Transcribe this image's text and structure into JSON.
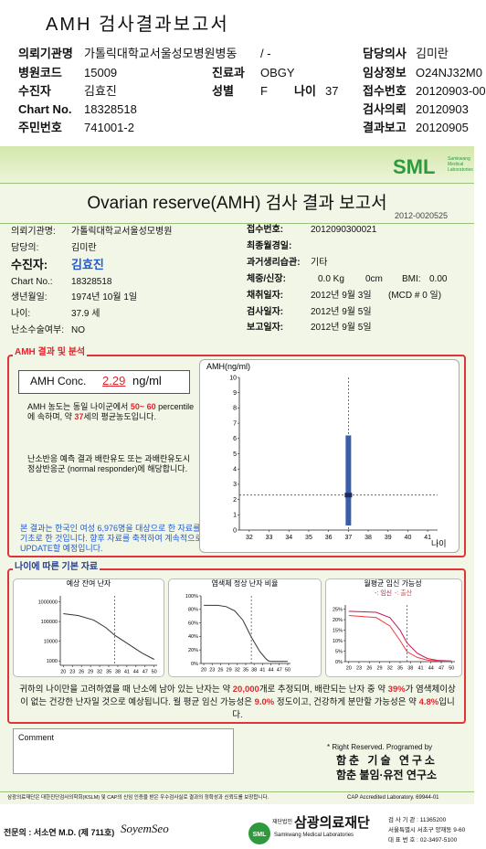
{
  "header": {
    "title": "AMH 검사결과보고서",
    "ward": "/ -",
    "fields": [
      {
        "label": "의뢰기관명",
        "value": "가톨릭대학교서울성모병원병동"
      },
      {
        "label": "병원코드",
        "value": "15009"
      },
      {
        "label": "수진자",
        "value": "김효진"
      },
      {
        "label": "Chart No.",
        "value": "18328518"
      },
      {
        "label": "주민번호",
        "value": "741001-2"
      },
      {
        "label": "진료과",
        "value": "OBGY"
      },
      {
        "label": "성별",
        "value": "F"
      },
      {
        "label": "나이",
        "value": "37"
      },
      {
        "label": "담당의사",
        "value": "김미란"
      },
      {
        "label": "임상정보",
        "value": "O24NJ32M0"
      },
      {
        "label": "접수번호",
        "value": "20120903-00"
      },
      {
        "label": "검사의뢰",
        "value": "20120903"
      },
      {
        "label": "결과보고",
        "value": "20120905"
      }
    ]
  },
  "report": {
    "logo": "SML",
    "logo_sub": "Samkwang Medical Laboratories",
    "title": "Ovarian reserve(AMH) 검사 결과 보고서",
    "report_no": "2012-0020525",
    "left_fields": [
      {
        "label": "의뢰기관명:",
        "value": "가톨릭대학교서울성모병원"
      },
      {
        "label": "담당의:",
        "value": "김미란"
      },
      {
        "label": "수진자:",
        "value": "김효진"
      },
      {
        "label": "Chart No.:",
        "value": "18328518"
      },
      {
        "label": "생년월일:",
        "value": "1974년 10월 1일"
      },
      {
        "label": "나이:",
        "value": "37.9 세"
      },
      {
        "label": "난소수술여부:",
        "value": "NO"
      }
    ],
    "right_fields": [
      {
        "label": "접수번호:",
        "values": [
          "2012090300021"
        ]
      },
      {
        "label": "최종월경일:",
        "values": []
      },
      {
        "label": "과거생리습관:",
        "values": [
          "기타"
        ]
      },
      {
        "label": "체중/신장:",
        "values": [
          "0.0 Kg",
          "0cm",
          "BMI:",
          "0.00"
        ]
      },
      {
        "label": "채취일자:",
        "values": [
          "2012년 9월 3일",
          "(MCD # 0 일)"
        ]
      },
      {
        "label": "검사일자:",
        "values": [
          "2012년 9월 5일"
        ]
      },
      {
        "label": "보고일자:",
        "values": [
          "2012년 9월 5일"
        ]
      }
    ]
  },
  "amh": {
    "section_title": "AMH 결과 및 분석",
    "conc_label": "AMH Conc.",
    "conc_value": "2.29",
    "conc_unit": "ng/ml",
    "percentile_text": [
      {
        "text": "AMH 농도는 동일 나이군에서 "
      },
      {
        "text": "50~ 60",
        "highlight": true
      },
      {
        "text": " percentile에 속하며, 약 "
      },
      {
        "text": "37",
        "highlight": true
      },
      {
        "text": "세의 평균농도입니다."
      }
    ],
    "response_text": "난소반응 예측 결과 배란유도 또는 과배란유도시 정상반응군 (normal responder)에 해당합니다.",
    "note_text": "본 결과는 한국인 여성 6,976명을 대상으로 한 자료를 기초로 한 것입니다. 향후 자료를 축적하여 계속적으로 UPDATE할 예정입니다.",
    "chart": {
      "type": "range",
      "ylabel": "AMH(ng/ml)",
      "xlabel": "나이",
      "xlim": [
        31.5,
        41.5
      ],
      "ylim": [
        0,
        10
      ],
      "xticks": [
        32,
        33,
        34,
        35,
        36,
        37,
        38,
        39,
        40,
        41
      ],
      "yticks": [
        0,
        1,
        2,
        3,
        4,
        5,
        6,
        7,
        8,
        9,
        10
      ],
      "range": {
        "x": 37,
        "low": 0.3,
        "high": 6.2,
        "color": "#3b5ea8"
      },
      "point": {
        "x": 37,
        "y": 2.29,
        "color": "#1a2a5a"
      }
    }
  },
  "basic": {
    "section_title": "나이에 따른 기본 자료",
    "charts": [
      {
        "type": "line",
        "title": "예상 잔여 난자",
        "log": true,
        "xlim": [
          19,
          51
        ],
        "ylim": [
          600,
          2000000
        ],
        "xticks": [
          20,
          23,
          26,
          29,
          32,
          35,
          38,
          41,
          44,
          47,
          50
        ],
        "yticks": [
          1000,
          10000,
          100000,
          1000000
        ],
        "age_line": 37,
        "series": [
          {
            "color": "#333333",
            "x": [
              20,
              25,
              30,
              34,
              37,
              40,
              43,
              46,
              50
            ],
            "values": [
              250000,
              200000,
              120000,
              50000,
              20000,
              10000,
              5000,
              2500,
              1200
            ]
          }
        ]
      },
      {
        "type": "line",
        "title": "염색체 정상 난자 비율",
        "log": false,
        "xlim": [
          19,
          51
        ],
        "ylim": [
          0,
          100
        ],
        "xticks": [
          20,
          23,
          26,
          29,
          32,
          35,
          38,
          41,
          44,
          47,
          50
        ],
        "yticks": [
          {
            "value": 0,
            "label": "0%"
          },
          {
            "value": 20,
            "label": "20%"
          },
          {
            "value": 40,
            "label": "40%"
          },
          {
            "value": 60,
            "label": "60%"
          },
          {
            "value": 80,
            "label": "80%"
          },
          {
            "value": 100,
            "label": "100%"
          }
        ],
        "age_line": 37,
        "series": [
          {
            "color": "#333333",
            "x": [
              20,
              25,
              28,
              31,
              34,
              37,
              40,
              42,
              43,
              44,
              46,
              50
            ],
            "values": [
              86,
              86,
              84,
              78,
              64,
              39,
              18,
              8,
              4,
              3,
              3,
              3
            ]
          }
        ]
      },
      {
        "type": "line",
        "title": "월평균 임신 가능성",
        "log": false,
        "xlim": [
          19,
          51
        ],
        "ylim": [
          0,
          27
        ],
        "xticks": [
          20,
          23,
          26,
          29,
          32,
          35,
          38,
          41,
          44,
          47,
          50
        ],
        "yticks": [
          {
            "value": 0,
            "label": "0%"
          },
          {
            "value": 5,
            "label": "5%"
          },
          {
            "value": 10,
            "label": "10%"
          },
          {
            "value": 15,
            "label": "15%"
          },
          {
            "value": 20,
            "label": "20%"
          },
          {
            "value": 25,
            "label": "25%"
          }
        ],
        "age_line": 37,
        "series": [
          {
            "name": "-: 임신",
            "color": "#c2185b",
            "x": [
              20,
              28,
              32,
              35,
              37,
              40,
              43,
              46,
              50
            ],
            "values": [
              24,
              23.5,
              21,
              15,
              9,
              4,
              1.5,
              0.6,
              0.3
            ]
          },
          {
            "name": "-: 출산",
            "color": "#f03c3c",
            "x": [
              20,
              28,
              32,
              35,
              37,
              40,
              43,
              46,
              50
            ],
            "values": [
              22,
              21,
              17,
              10,
              4.8,
              2,
              0.7,
              0.3,
              0.2
            ]
          }
        ]
      }
    ],
    "summary": [
      {
        "text": "귀하의 나이만을 고려하였을 때 난소에 남아 있는 난자는 약 "
      },
      {
        "text": "20,000",
        "highlight": true
      },
      {
        "text": "개로 추정되며, 배란되는 난자 중 약 "
      },
      {
        "text": "39%",
        "highlight": true
      },
      {
        "text": "가 염색체이상이 없는 건강한 난자일 것으로 예상됩니다. 월 평균 임신 가능성은 "
      },
      {
        "text": "9.0%",
        "highlight": true
      },
      {
        "text": " 정도이고, 건강하게 분만할 가능성은 약 "
      },
      {
        "text": "4.8%",
        "highlight": true
      },
      {
        "text": "입니다."
      }
    ]
  },
  "footer": {
    "comment_label": "Comment",
    "credits": [
      "* Right Reserved. Programed by",
      "함춘 기술 연구소",
      "함춘 불임·유전 연구소"
    ],
    "accreditation": "삼광의료재단은 대한진단검사의학회(KSLM) 및 CAP의 신임 인증을 받은 우수검사실로 결과의 정확성과 신뢰도를 보장합니다.",
    "cap": "CAP Accredited Laboratory. 69944-01",
    "doctor": "전문의 : 서소연 M.D. (제 711호)",
    "signature": "SoyemSeo",
    "org_prefix": "재단법인",
    "org_name": "삼광의료재단",
    "org_english": "Samkwang Medical Laboratories",
    "contact": [
      "검 사 기 관 : 11365200",
      "서울특별시 서초구 양재동 9-60",
      "대 표 번 호 : 02-3497-5100"
    ]
  }
}
